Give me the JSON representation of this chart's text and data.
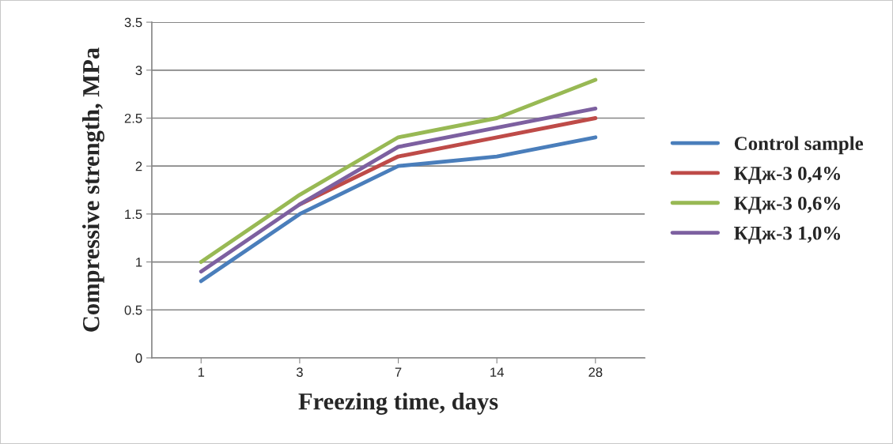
{
  "chart_data": {
    "type": "line",
    "xlabel": "Freezing time, days",
    "ylabel": "Compressive strength, MPa",
    "categories": [
      "1",
      "3",
      "7",
      "14",
      "28"
    ],
    "series": [
      {
        "name": "Control sample",
        "color": "#4a7ebb",
        "values": [
          0.8,
          1.5,
          2.0,
          2.1,
          2.3
        ]
      },
      {
        "name": "КДж-3 0,4%",
        "color": "#be4b48",
        "values": [
          null,
          1.6,
          2.1,
          2.3,
          2.5
        ]
      },
      {
        "name": "КДж-3 0,6%",
        "color": "#98b954",
        "values": [
          1.0,
          1.7,
          2.3,
          2.5,
          2.9
        ]
      },
      {
        "name": "КДж-3 1,0%",
        "color": "#7d60a0",
        "values": [
          0.9,
          1.6,
          2.2,
          2.4,
          2.6
        ]
      }
    ],
    "ylim": [
      0,
      3.5
    ],
    "yticks": [
      0,
      0.5,
      1,
      1.5,
      2,
      2.5,
      3,
      3.5
    ],
    "grid": "y",
    "legend": "right",
    "marker": "none",
    "line_style": "solid"
  }
}
